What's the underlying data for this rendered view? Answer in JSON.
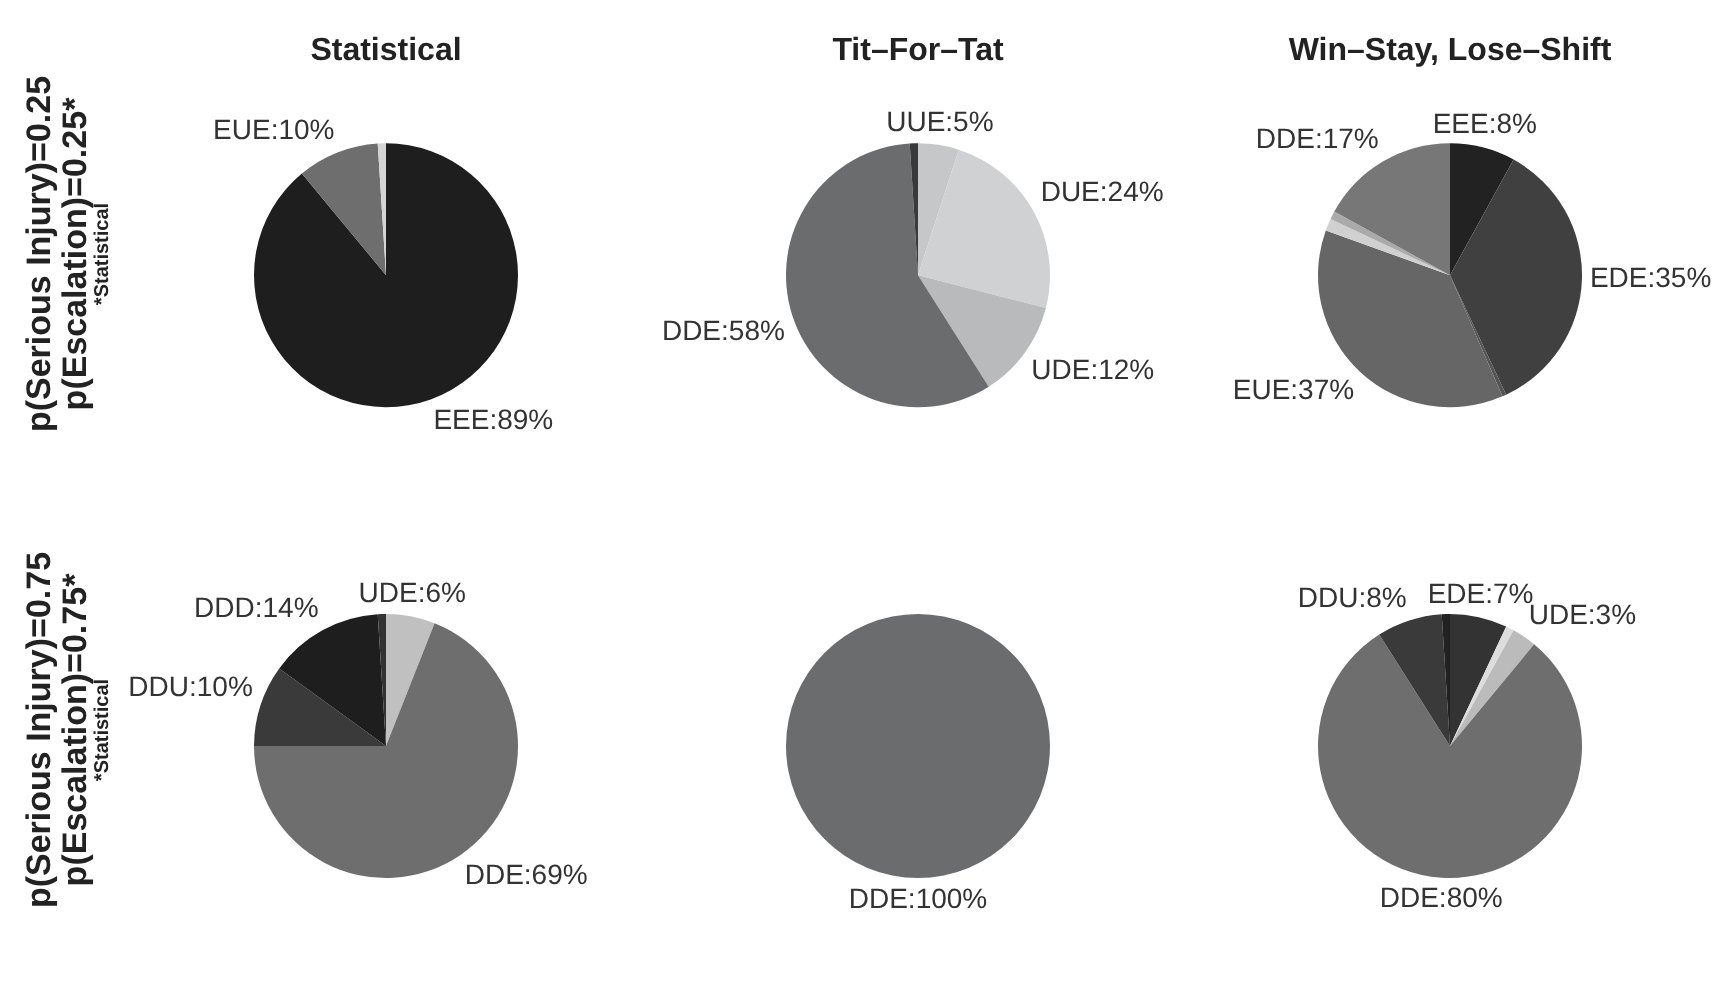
{
  "chart_data": [
    {
      "type": "pie",
      "title": "Statistical",
      "categories": [
        "EEE:89%",
        "EUE:10%",
        null
      ],
      "values": [
        89,
        10,
        1
      ],
      "colors": [
        "#1e1e1e",
        "#6e6e6e",
        "#d4d4d4"
      ],
      "annotations": [
        "p(Serious Injury)=0.25",
        "p(Escalation)=0.25*",
        "*Statistical"
      ]
    },
    {
      "type": "pie",
      "title": "Tit–For–Tat",
      "categories": [
        "UUE:5%",
        "DUE:24%",
        "UDE:12%",
        "DDE:58%",
        null
      ],
      "values": [
        5,
        24,
        12,
        58,
        1
      ],
      "colors": [
        "#c6c7c9",
        "#d0d1d3",
        "#b9babc",
        "#6b6c6e",
        "#3a3a3a"
      ]
    },
    {
      "type": "pie",
      "title": "Win–Stay, Lose–Shift",
      "categories": [
        "EEE:8%",
        "EDE:35%",
        null,
        "EUE:37%",
        null,
        null,
        "DDE:17%"
      ],
      "values": [
        8,
        35,
        0.5,
        37,
        1.5,
        1,
        17
      ],
      "colors": [
        "#222222",
        "#404040",
        "#555555",
        "#666666",
        "#d0d0d0",
        "#aaaaaa",
        "#777777"
      ]
    },
    {
      "type": "pie",
      "categories": [
        "UDE:6%",
        "DDE:69%",
        "DDU:10%",
        "DDD:14%",
        null
      ],
      "values": [
        6,
        69,
        10,
        14,
        1
      ],
      "colors": [
        "#c0c0c0",
        "#6e6e6e",
        "#3a3a3a",
        "#1e1e1e",
        "#333333"
      ],
      "annotations": [
        "p(Serious Injury)=0.75",
        "p(Escalation)=0.75*",
        "*Statistical"
      ]
    },
    {
      "type": "pie",
      "categories": [
        "DDE:100%"
      ],
      "values": [
        100
      ],
      "colors": [
        "#6b6c6e"
      ]
    },
    {
      "type": "pie",
      "categories": [
        "EDE:7%",
        null,
        "UDE:3%",
        "DDE:80%",
        "DDU:8%",
        null
      ],
      "values": [
        7,
        1,
        3,
        80,
        8,
        1
      ],
      "colors": [
        "#333333",
        "#dddddd",
        "#bbbbbb",
        "#6e6e6e",
        "#3a3a3a",
        "#222222"
      ]
    }
  ]
}
